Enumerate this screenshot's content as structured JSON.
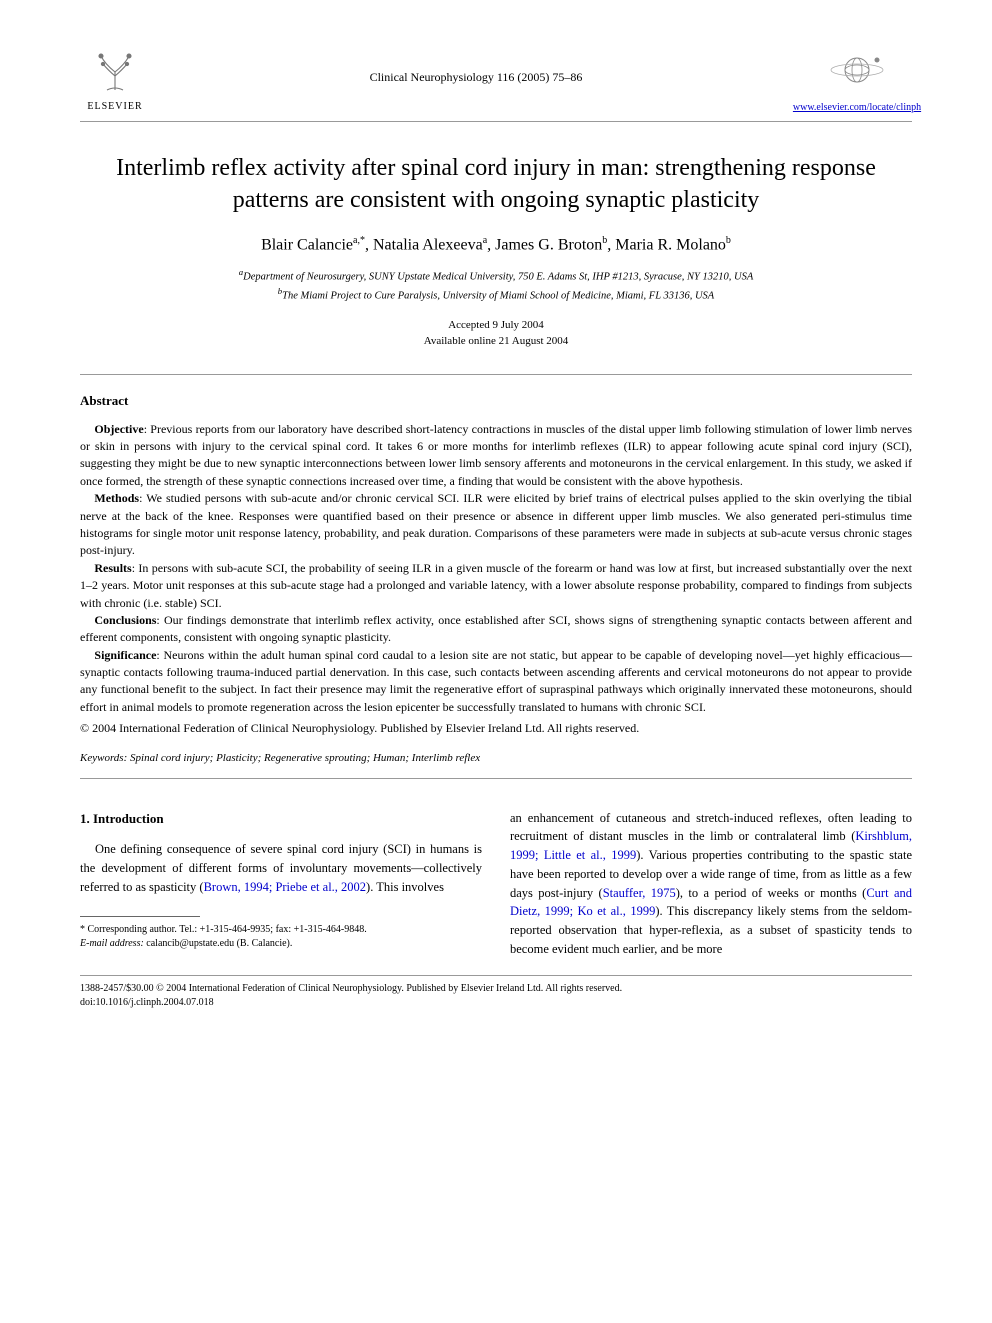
{
  "header": {
    "publisher_name": "ELSEVIER",
    "journal_ref": "Clinical Neurophysiology 116 (2005) 75–86",
    "journal_url": "www.elsevier.com/locate/clinph"
  },
  "title": "Interlimb reflex activity after spinal cord injury in man: strengthening response patterns are consistent with ongoing synaptic plasticity",
  "authors_html": "Blair Calancie<sup>a,*</sup>, Natalia Alexeeva<sup>a</sup>, James G. Broton<sup>b</sup>, Maria R. Molano<sup>b</sup>",
  "affiliations": {
    "a": "Department of Neurosurgery, SUNY Upstate Medical University, 750 E. Adams St, IHP #1213, Syracuse, NY 13210, USA",
    "b": "The Miami Project to Cure Paralysis, University of Miami School of Medicine, Miami, FL 33136, USA"
  },
  "dates": {
    "accepted": "Accepted 9 July 2004",
    "online": "Available online 21 August 2004"
  },
  "abstract": {
    "heading": "Abstract",
    "objective_label": "Objective",
    "objective": ": Previous reports from our laboratory have described short-latency contractions in muscles of the distal upper limb following stimulation of lower limb nerves or skin in persons with injury to the cervical spinal cord. It takes 6 or more months for interlimb reflexes (ILR) to appear following acute spinal cord injury (SCI), suggesting they might be due to new synaptic interconnections between lower limb sensory afferents and motoneurons in the cervical enlargement. In this study, we asked if once formed, the strength of these synaptic connections increased over time, a finding that would be consistent with the above hypothesis.",
    "methods_label": "Methods",
    "methods": ": We studied persons with sub-acute and/or chronic cervical SCI. ILR were elicited by brief trains of electrical pulses applied to the skin overlying the tibial nerve at the back of the knee. Responses were quantified based on their presence or absence in different upper limb muscles. We also generated peri-stimulus time histograms for single motor unit response latency, probability, and peak duration. Comparisons of these parameters were made in subjects at sub-acute versus chronic stages post-injury.",
    "results_label": "Results",
    "results": ": In persons with sub-acute SCI, the probability of seeing ILR in a given muscle of the forearm or hand was low at first, but increased substantially over the next 1–2 years. Motor unit responses at this sub-acute stage had a prolonged and variable latency, with a lower absolute response probability, compared to findings from subjects with chronic (i.e. stable) SCI.",
    "conclusions_label": "Conclusions",
    "conclusions": ": Our findings demonstrate that interlimb reflex activity, once established after SCI, shows signs of strengthening synaptic contacts between afferent and efferent components, consistent with ongoing synaptic plasticity.",
    "significance_label": "Significance",
    "significance": ": Neurons within the adult human spinal cord caudal to a lesion site are not static, but appear to be capable of developing novel—yet highly efficacious—synaptic contacts following trauma-induced partial denervation. In this case, such contacts between ascending afferents and cervical motoneurons do not appear to provide any functional benefit to the subject. In fact their presence may limit the regenerative effort of supraspinal pathways which originally innervated these motoneurons, should effort in animal models to promote regeneration across the lesion epicenter be successfully translated to humans with chronic SCI.",
    "copyright": "© 2004 International Federation of Clinical Neurophysiology. Published by Elsevier Ireland Ltd. All rights reserved."
  },
  "keywords_label": "Keywords:",
  "keywords": " Spinal cord injury; Plasticity; Regenerative sprouting; Human; Interlimb reflex",
  "intro": {
    "heading": "1. Introduction",
    "col1_p1_a": "One defining consequence of severe spinal cord injury (SCI) in humans is the development of different forms of involuntary movements—collectively referred to as spasticity (",
    "col1_cite1": "Brown, 1994; Priebe et al., 2002",
    "col1_p1_b": "). This involves",
    "col2_p1_a": "an enhancement of cutaneous and stretch-induced reflexes, often leading to recruitment of distant muscles in the limb or contralateral limb (",
    "col2_cite1": "Kirshblum, 1999; Little et al., 1999",
    "col2_p1_b": "). Various properties contributing to the spastic state have been reported to develop over a wide range of time, from as little as a few days post-injury (",
    "col2_cite2": "Stauffer, 1975",
    "col2_p1_c": "), to a period of weeks or months (",
    "col2_cite3": "Curt and Dietz, 1999; Ko et al., 1999",
    "col2_p1_d": "). This discrepancy likely stems from the seldom-reported observation that hyper-reflexia, as a subset of spasticity tends to become evident much earlier, and be more"
  },
  "footnote": {
    "corr_label": "* Corresponding author. Tel.: ",
    "corr_tel": "+1-315-464-9935; fax: +1-315-464-9848.",
    "email_label": "E-mail address:",
    "email": " calancib@upstate.edu (B. Calancie)."
  },
  "footer": {
    "line1": "1388-2457/$30.00 © 2004 International Federation of Clinical Neurophysiology. Published by Elsevier Ireland Ltd. All rights reserved.",
    "line2": "doi:10.1016/j.clinph.2004.07.018"
  },
  "colors": {
    "text": "#000000",
    "link": "#0000cc",
    "rule": "#999999",
    "background": "#ffffff"
  },
  "typography": {
    "title_fontsize": 24,
    "author_fontsize": 16,
    "body_fontsize": 12.5,
    "abstract_fontsize": 12,
    "footnote_fontsize": 10
  }
}
